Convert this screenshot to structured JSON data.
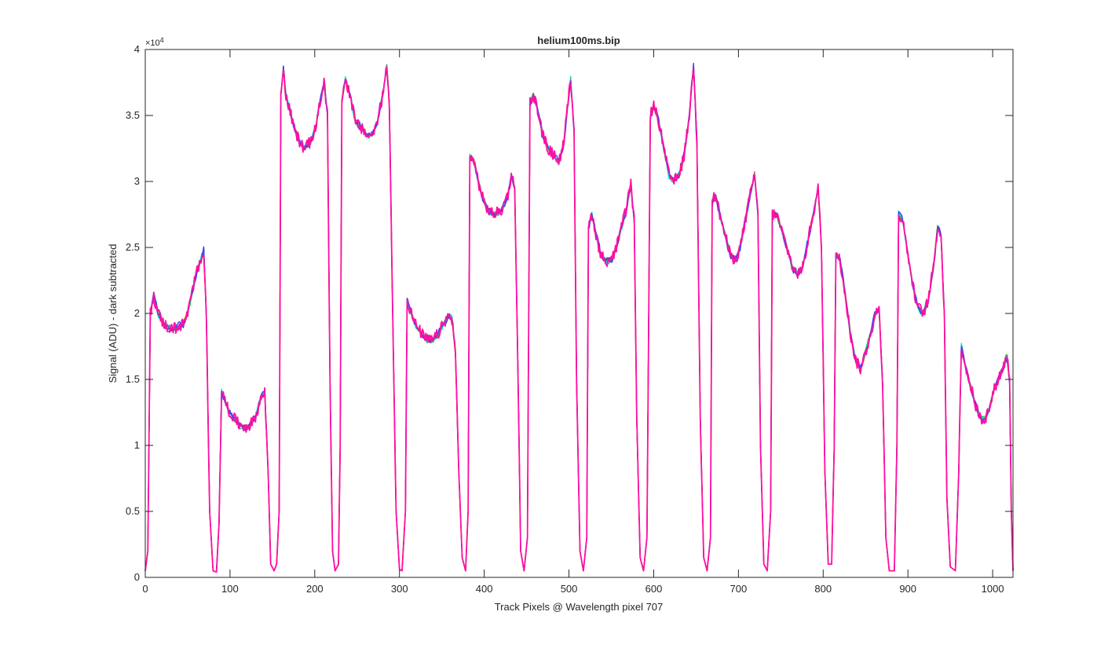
{
  "chart_data": {
    "type": "line",
    "title": "helium100ms.bip",
    "xlabel": "Track Pixels @ Wavelength pixel 707",
    "ylabel": "Signal (ADU) - dark subtracted",
    "xlim": [
      0,
      1024
    ],
    "ylim": [
      0,
      40000
    ],
    "y_exponent_label": "×10",
    "y_exponent_power": "4",
    "xticks": [
      0,
      100,
      200,
      300,
      400,
      500,
      600,
      700,
      800,
      900,
      1000
    ],
    "xtick_labels": [
      "0",
      "100",
      "200",
      "300",
      "400",
      "500",
      "600",
      "700",
      "800",
      "900",
      "1000"
    ],
    "yticks": [
      0,
      5000,
      10000,
      15000,
      20000,
      25000,
      30000,
      35000,
      40000
    ],
    "ytick_labels": [
      "0",
      "0.5",
      "1",
      "1.5",
      "2",
      "2.5",
      "3",
      "3.5",
      "4"
    ],
    "grid": false,
    "legend": "none",
    "series_colors": [
      "#ff2020",
      "#ffaa00",
      "#20c040",
      "#00e0c0",
      "#2040ff",
      "#8a2be2",
      "#ff10a0"
    ],
    "series_jitter": [
      300,
      300,
      400,
      500,
      550,
      350,
      0
    ],
    "profile": [
      [
        0,
        500
      ],
      [
        3,
        2000
      ],
      [
        6,
        20000
      ],
      [
        10,
        21300
      ],
      [
        15,
        20000
      ],
      [
        22,
        19200
      ],
      [
        30,
        18800
      ],
      [
        40,
        19000
      ],
      [
        45,
        19200
      ],
      [
        50,
        20000
      ],
      [
        55,
        21500
      ],
      [
        60,
        23000
      ],
      [
        65,
        24000
      ],
      [
        69,
        24800
      ],
      [
        72,
        20000
      ],
      [
        76,
        5000
      ],
      [
        80,
        500
      ],
      [
        84,
        400
      ],
      [
        87,
        4000
      ],
      [
        90,
        14100
      ],
      [
        95,
        13200
      ],
      [
        100,
        12500
      ],
      [
        105,
        12000
      ],
      [
        112,
        11500
      ],
      [
        120,
        11400
      ],
      [
        126,
        11700
      ],
      [
        132,
        12500
      ],
      [
        136,
        13500
      ],
      [
        141,
        14000
      ],
      [
        145,
        8000
      ],
      [
        148,
        1000
      ],
      [
        152,
        500
      ],
      [
        155,
        1000
      ],
      [
        158,
        5000
      ],
      [
        160,
        36500
      ],
      [
        163,
        38600
      ],
      [
        166,
        36500
      ],
      [
        170,
        35500
      ],
      [
        176,
        34000
      ],
      [
        182,
        33000
      ],
      [
        188,
        32500
      ],
      [
        195,
        33000
      ],
      [
        201,
        34000
      ],
      [
        206,
        36000
      ],
      [
        211,
        37400
      ],
      [
        215,
        35000
      ],
      [
        218,
        15000
      ],
      [
        221,
        2000
      ],
      [
        224,
        500
      ],
      [
        228,
        1000
      ],
      [
        230,
        10000
      ],
      [
        232,
        36000
      ],
      [
        236,
        37800
      ],
      [
        242,
        36500
      ],
      [
        248,
        34500
      ],
      [
        255,
        34000
      ],
      [
        262,
        33500
      ],
      [
        268,
        33500
      ],
      [
        274,
        34500
      ],
      [
        280,
        36500
      ],
      [
        285,
        38700
      ],
      [
        288,
        36000
      ],
      [
        292,
        20000
      ],
      [
        296,
        5000
      ],
      [
        300,
        600
      ],
      [
        303,
        500
      ],
      [
        307,
        5000
      ],
      [
        309,
        21000
      ],
      [
        314,
        20000
      ],
      [
        320,
        19000
      ],
      [
        326,
        18500
      ],
      [
        332,
        18000
      ],
      [
        340,
        18000
      ],
      [
        346,
        18500
      ],
      [
        352,
        19200
      ],
      [
        357,
        19800
      ],
      [
        362,
        19600
      ],
      [
        366,
        17000
      ],
      [
        370,
        8000
      ],
      [
        374,
        1500
      ],
      [
        378,
        500
      ],
      [
        381,
        5000
      ],
      [
        383,
        32000
      ],
      [
        388,
        31500
      ],
      [
        393,
        30000
      ],
      [
        399,
        28500
      ],
      [
        405,
        27800
      ],
      [
        412,
        27500
      ],
      [
        420,
        27800
      ],
      [
        428,
        29000
      ],
      [
        432,
        30500
      ],
      [
        436,
        29500
      ],
      [
        440,
        15000
      ],
      [
        443,
        2000
      ],
      [
        447,
        500
      ],
      [
        451,
        3000
      ],
      [
        454,
        36000
      ],
      [
        458,
        36500
      ],
      [
        463,
        35500
      ],
      [
        469,
        33500
      ],
      [
        475,
        32500
      ],
      [
        482,
        32000
      ],
      [
        488,
        31500
      ],
      [
        494,
        33000
      ],
      [
        499,
        36000
      ],
      [
        502,
        37800
      ],
      [
        506,
        34000
      ],
      [
        509,
        15000
      ],
      [
        513,
        2000
      ],
      [
        517,
        500
      ],
      [
        521,
        3000
      ],
      [
        523,
        26500
      ],
      [
        527,
        27500
      ],
      [
        532,
        26000
      ],
      [
        537,
        24500
      ],
      [
        543,
        24000
      ],
      [
        550,
        24000
      ],
      [
        556,
        25000
      ],
      [
        562,
        26500
      ],
      [
        568,
        28000
      ],
      [
        573,
        29800
      ],
      [
        577,
        27000
      ],
      [
        580,
        12000
      ],
      [
        584,
        1500
      ],
      [
        588,
        500
      ],
      [
        592,
        3000
      ],
      [
        596,
        35000
      ],
      [
        600,
        35800
      ],
      [
        606,
        34500
      ],
      [
        612,
        32500
      ],
      [
        618,
        30500
      ],
      [
        624,
        30000
      ],
      [
        630,
        30500
      ],
      [
        636,
        32000
      ],
      [
        642,
        35000
      ],
      [
        647,
        38800
      ],
      [
        651,
        33000
      ],
      [
        655,
        12000
      ],
      [
        659,
        1500
      ],
      [
        663,
        500
      ],
      [
        667,
        3000
      ],
      [
        669,
        28500
      ],
      [
        673,
        29000
      ],
      [
        678,
        27500
      ],
      [
        684,
        26000
      ],
      [
        690,
        24500
      ],
      [
        696,
        24000
      ],
      [
        702,
        25000
      ],
      [
        708,
        27000
      ],
      [
        714,
        29000
      ],
      [
        719,
        30600
      ],
      [
        723,
        27500
      ],
      [
        726,
        10000
      ],
      [
        730,
        1000
      ],
      [
        734,
        500
      ],
      [
        738,
        5000
      ],
      [
        740,
        27500
      ],
      [
        745,
        27500
      ],
      [
        750,
        26500
      ],
      [
        757,
        25000
      ],
      [
        764,
        23500
      ],
      [
        770,
        23000
      ],
      [
        776,
        23500
      ],
      [
        782,
        25500
      ],
      [
        788,
        27500
      ],
      [
        794,
        29500
      ],
      [
        798,
        25000
      ],
      [
        802,
        8000
      ],
      [
        806,
        1000
      ],
      [
        810,
        1000
      ],
      [
        813,
        10000
      ],
      [
        815,
        24500
      ],
      [
        820,
        24000
      ],
      [
        826,
        21500
      ],
      [
        832,
        18500
      ],
      [
        838,
        16500
      ],
      [
        844,
        15800
      ],
      [
        850,
        17000
      ],
      [
        856,
        18500
      ],
      [
        862,
        20000
      ],
      [
        866,
        20300
      ],
      [
        870,
        15000
      ],
      [
        874,
        3000
      ],
      [
        878,
        500
      ],
      [
        884,
        500
      ],
      [
        887,
        10000
      ],
      [
        889,
        27500
      ],
      [
        894,
        27000
      ],
      [
        900,
        24500
      ],
      [
        906,
        22000
      ],
      [
        912,
        20500
      ],
      [
        918,
        20000
      ],
      [
        924,
        21000
      ],
      [
        930,
        23500
      ],
      [
        935,
        26500
      ],
      [
        939,
        26000
      ],
      [
        943,
        20000
      ],
      [
        946,
        6000
      ],
      [
        950,
        800
      ],
      [
        956,
        500
      ],
      [
        960,
        8000
      ],
      [
        963,
        17500
      ],
      [
        968,
        16000
      ],
      [
        974,
        14500
      ],
      [
        980,
        13000
      ],
      [
        986,
        12000
      ],
      [
        991,
        12000
      ],
      [
        997,
        13000
      ],
      [
        1003,
        14500
      ],
      [
        1010,
        15500
      ],
      [
        1017,
        16800
      ],
      [
        1020,
        15000
      ],
      [
        1022,
        5000
      ],
      [
        1024,
        500
      ]
    ]
  }
}
